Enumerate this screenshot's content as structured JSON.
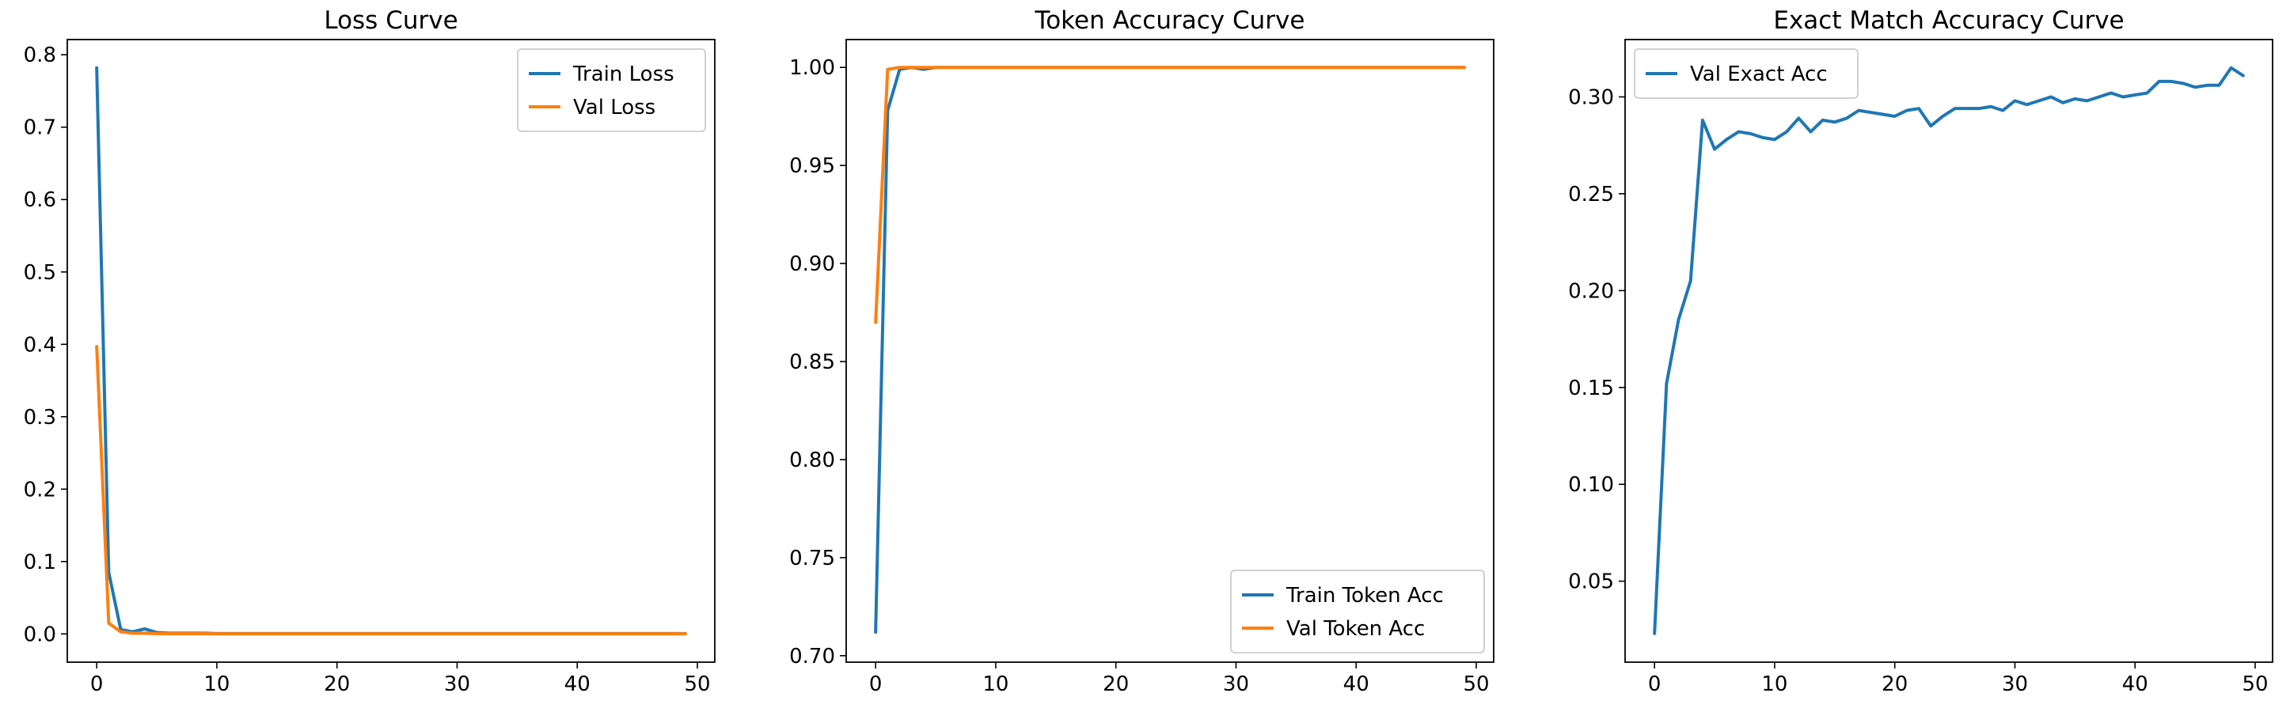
{
  "colors": {
    "blue": "#1f77b4",
    "orange": "#ff7f0e"
  },
  "chart_data": [
    {
      "type": "line",
      "title": "Loss Curve",
      "xlabel": "",
      "ylabel": "",
      "xlim": [
        -2.45,
        51.45
      ],
      "ylim": [
        -0.039,
        0.821
      ],
      "xticks": [
        0,
        10,
        20,
        30,
        40,
        50
      ],
      "yticks": [
        0.0,
        0.1,
        0.2,
        0.3,
        0.4,
        0.5,
        0.6,
        0.7,
        0.8
      ],
      "xtick_labels": [
        "0",
        "10",
        "20",
        "30",
        "40",
        "50"
      ],
      "ytick_labels": [
        "0.0",
        "0.1",
        "0.2",
        "0.3",
        "0.4",
        "0.5",
        "0.6",
        "0.7",
        "0.8"
      ],
      "legend_position": "upper right",
      "grid": false,
      "series": [
        {
          "name": "Train Loss",
          "color": "#1f77b4",
          "x": [
            0,
            1,
            2,
            3,
            4,
            5,
            6,
            7,
            8,
            9,
            10,
            11,
            12,
            13,
            14,
            15,
            16,
            17,
            18,
            19,
            20,
            21,
            22,
            23,
            24,
            25,
            26,
            27,
            28,
            29,
            30,
            31,
            32,
            33,
            34,
            35,
            36,
            37,
            38,
            39,
            40,
            41,
            42,
            43,
            44,
            45,
            46,
            47,
            48,
            49
          ],
          "y": [
            0.782,
            0.085,
            0.006,
            0.003,
            0.007,
            0.002,
            0.001,
            0.001,
            0.001,
            0.001,
            0.0005,
            0.0005,
            0.0005,
            0.0005,
            0.0005,
            0.0005,
            0.0005,
            0.0005,
            0.0005,
            0.0005,
            0.0005,
            0.0005,
            0.0005,
            0.0005,
            0.0005,
            0.0005,
            0.0005,
            0.0005,
            0.0005,
            0.0005,
            0.0005,
            0.0005,
            0.0005,
            0.0005,
            0.0005,
            0.0005,
            0.0005,
            0.0005,
            0.0005,
            0.0005,
            0.0005,
            0.0005,
            0.0005,
            0.0005,
            0.0005,
            0.0005,
            0.0005,
            0.0005,
            0.0005,
            0.0005
          ]
        },
        {
          "name": "Val Loss",
          "color": "#ff7f0e",
          "x": [
            0,
            1,
            2,
            3,
            4,
            5,
            6,
            7,
            8,
            9,
            10,
            11,
            12,
            13,
            14,
            15,
            16,
            17,
            18,
            19,
            20,
            21,
            22,
            23,
            24,
            25,
            26,
            27,
            28,
            29,
            30,
            31,
            32,
            33,
            34,
            35,
            36,
            37,
            38,
            39,
            40,
            41,
            42,
            43,
            44,
            45,
            46,
            47,
            48,
            49
          ],
          "y": [
            0.397,
            0.015,
            0.003,
            0.001,
            0.001,
            0.0005,
            0.0003,
            0.0003,
            0.0003,
            0.0003,
            0.0002,
            0.0002,
            0.0002,
            0.0002,
            0.0002,
            0.0002,
            0.0002,
            0.0002,
            0.0002,
            0.0002,
            0.0002,
            0.0002,
            0.0002,
            0.0002,
            0.0002,
            0.0002,
            0.0002,
            0.0002,
            0.0002,
            0.0002,
            0.0002,
            0.0002,
            0.0002,
            0.0002,
            0.0002,
            0.0002,
            0.0002,
            0.0002,
            0.0002,
            0.0002,
            0.0002,
            0.0002,
            0.0002,
            0.0002,
            0.0002,
            0.0002,
            0.0002,
            0.0002,
            0.0002,
            0.0002
          ]
        }
      ]
    },
    {
      "type": "line",
      "title": "Token Accuracy Curve",
      "xlabel": "",
      "ylabel": "",
      "xlim": [
        -2.45,
        51.45
      ],
      "ylim": [
        0.6967,
        1.0142
      ],
      "xticks": [
        0,
        10,
        20,
        30,
        40,
        50
      ],
      "yticks": [
        0.7,
        0.75,
        0.8,
        0.85,
        0.9,
        0.95,
        1.0
      ],
      "xtick_labels": [
        "0",
        "10",
        "20",
        "30",
        "40",
        "50"
      ],
      "ytick_labels": [
        "0.70",
        "0.75",
        "0.80",
        "0.85",
        "0.90",
        "0.95",
        "1.00"
      ],
      "legend_position": "lower right",
      "grid": false,
      "series": [
        {
          "name": "Train Token Acc",
          "color": "#1f77b4",
          "x": [
            0,
            1,
            2,
            3,
            4,
            5,
            6,
            7,
            8,
            9,
            10,
            11,
            12,
            13,
            14,
            15,
            16,
            17,
            18,
            19,
            20,
            21,
            22,
            23,
            24,
            25,
            26,
            27,
            28,
            29,
            30,
            31,
            32,
            33,
            34,
            35,
            36,
            37,
            38,
            39,
            40,
            41,
            42,
            43,
            44,
            45,
            46,
            47,
            48,
            49
          ],
          "y": [
            0.712,
            0.978,
            0.999,
            1.0,
            0.999,
            1.0,
            1.0,
            1.0,
            1.0,
            1.0,
            1.0,
            1.0,
            1.0,
            1.0,
            1.0,
            1.0,
            1.0,
            1.0,
            1.0,
            1.0,
            1.0,
            1.0,
            1.0,
            1.0,
            1.0,
            1.0,
            1.0,
            1.0,
            1.0,
            1.0,
            1.0,
            1.0,
            1.0,
            1.0,
            1.0,
            1.0,
            1.0,
            1.0,
            1.0,
            1.0,
            1.0,
            1.0,
            1.0,
            1.0,
            1.0,
            1.0,
            1.0,
            1.0,
            1.0,
            1.0
          ]
        },
        {
          "name": "Val Token Acc",
          "color": "#ff7f0e",
          "x": [
            0,
            1,
            2,
            3,
            4,
            5,
            6,
            7,
            8,
            9,
            10,
            11,
            12,
            13,
            14,
            15,
            16,
            17,
            18,
            19,
            20,
            21,
            22,
            23,
            24,
            25,
            26,
            27,
            28,
            29,
            30,
            31,
            32,
            33,
            34,
            35,
            36,
            37,
            38,
            39,
            40,
            41,
            42,
            43,
            44,
            45,
            46,
            47,
            48,
            49
          ],
          "y": [
            0.87,
            0.999,
            1.0,
            1.0,
            1.0,
            1.0,
            1.0,
            1.0,
            1.0,
            1.0,
            1.0,
            1.0,
            1.0,
            1.0,
            1.0,
            1.0,
            1.0,
            1.0,
            1.0,
            1.0,
            1.0,
            1.0,
            1.0,
            1.0,
            1.0,
            1.0,
            1.0,
            1.0,
            1.0,
            1.0,
            1.0,
            1.0,
            1.0,
            1.0,
            1.0,
            1.0,
            1.0,
            1.0,
            1.0,
            1.0,
            1.0,
            1.0,
            1.0,
            1.0,
            1.0,
            1.0,
            1.0,
            1.0,
            1.0,
            1.0
          ]
        }
      ]
    },
    {
      "type": "line",
      "title": "Exact Match Accuracy Curve",
      "xlabel": "",
      "ylabel": "",
      "xlim": [
        -2.45,
        51.45
      ],
      "ylim": [
        0.0082,
        0.3296
      ],
      "xticks": [
        0,
        10,
        20,
        30,
        40,
        50
      ],
      "yticks": [
        0.05,
        0.1,
        0.15,
        0.2,
        0.25,
        0.3
      ],
      "xtick_labels": [
        "0",
        "10",
        "20",
        "30",
        "40",
        "50"
      ],
      "ytick_labels": [
        "0.05",
        "0.10",
        "0.15",
        "0.20",
        "0.25",
        "0.30"
      ],
      "legend_position": "upper left",
      "grid": false,
      "series": [
        {
          "name": "Val Exact Acc",
          "color": "#1f77b4",
          "x": [
            0,
            1,
            2,
            3,
            4,
            5,
            6,
            7,
            8,
            9,
            10,
            11,
            12,
            13,
            14,
            15,
            16,
            17,
            18,
            19,
            20,
            21,
            22,
            23,
            24,
            25,
            26,
            27,
            28,
            29,
            30,
            31,
            32,
            33,
            34,
            35,
            36,
            37,
            38,
            39,
            40,
            41,
            42,
            43,
            44,
            45,
            46,
            47,
            48,
            49
          ],
          "y": [
            0.023,
            0.152,
            0.185,
            0.205,
            0.288,
            0.273,
            0.278,
            0.282,
            0.281,
            0.279,
            0.278,
            0.282,
            0.289,
            0.282,
            0.288,
            0.287,
            0.289,
            0.293,
            0.292,
            0.291,
            0.29,
            0.293,
            0.294,
            0.285,
            0.29,
            0.294,
            0.294,
            0.294,
            0.295,
            0.293,
            0.298,
            0.296,
            0.298,
            0.3,
            0.297,
            0.299,
            0.298,
            0.3,
            0.302,
            0.3,
            0.301,
            0.302,
            0.308,
            0.308,
            0.307,
            0.305,
            0.306,
            0.306,
            0.315,
            0.311
          ]
        }
      ]
    }
  ]
}
